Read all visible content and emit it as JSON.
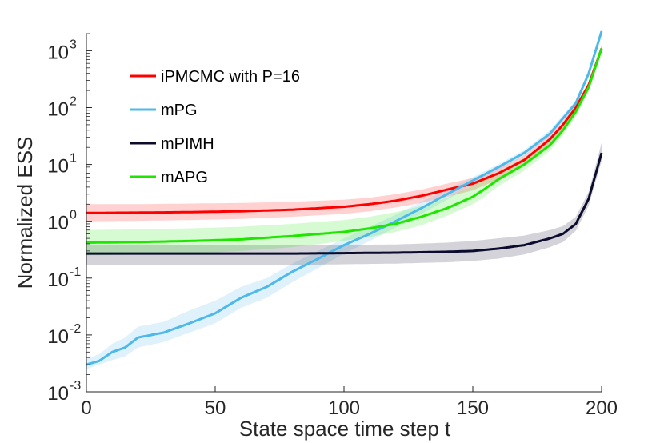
{
  "chart_data": {
    "type": "line",
    "title": "",
    "xlabel": "State space time step t",
    "ylabel": "Normalized ESS",
    "xlim": [
      0,
      200
    ],
    "ylim": [
      0.001,
      2000
    ],
    "yscale": "log",
    "grid": false,
    "legend_position": "top-left",
    "x_ticks": [
      0,
      50,
      100,
      150,
      200
    ],
    "x_tick_labels": [
      "0",
      "50",
      "100",
      "150",
      "200"
    ],
    "y_ticks": [
      {
        "value": 0.001,
        "base": "10",
        "exp": "-3"
      },
      {
        "value": 0.01,
        "base": "10",
        "exp": "-2"
      },
      {
        "value": 0.1,
        "base": "10",
        "exp": "-1"
      },
      {
        "value": 1,
        "base": "10",
        "exp": "0"
      },
      {
        "value": 10,
        "base": "10",
        "exp": "1"
      },
      {
        "value": 100,
        "base": "10",
        "exp": "2"
      },
      {
        "value": 1000,
        "base": "10",
        "exp": "3"
      }
    ],
    "series": [
      {
        "name": "iPMCMC with P=16",
        "color": "#ff0000",
        "x": [
          0,
          20,
          40,
          60,
          80,
          100,
          110,
          120,
          130,
          140,
          150,
          160,
          170,
          180,
          185,
          190,
          195,
          200
        ],
        "y": [
          1.4,
          1.42,
          1.45,
          1.5,
          1.6,
          1.8,
          2.0,
          2.3,
          2.8,
          3.6,
          4.6,
          7,
          12,
          28,
          50,
          100,
          250,
          1100
        ],
        "lower": [
          1.0,
          1.02,
          1.05,
          1.1,
          1.2,
          1.35,
          1.5,
          1.75,
          2.1,
          2.7,
          3.5,
          5.5,
          9.5,
          23,
          42,
          85,
          210,
          950
        ],
        "upper": [
          2.0,
          2.0,
          2.05,
          2.1,
          2.2,
          2.4,
          2.6,
          3.0,
          3.6,
          4.6,
          5.8,
          8.5,
          14.5,
          33,
          58,
          115,
          290,
          1250
        ]
      },
      {
        "name": "mPG",
        "color": "#4db8ea",
        "x": [
          0,
          5,
          10,
          15,
          20,
          30,
          40,
          50,
          60,
          70,
          80,
          90,
          100,
          110,
          120,
          130,
          140,
          150,
          160,
          170,
          180,
          190,
          195,
          200
        ],
        "y": [
          0.003,
          0.0035,
          0.005,
          0.006,
          0.009,
          0.011,
          0.016,
          0.024,
          0.045,
          0.07,
          0.13,
          0.22,
          0.38,
          0.6,
          1.0,
          1.7,
          3.0,
          5.2,
          9,
          16,
          35,
          120,
          400,
          2200
        ],
        "lower": [
          0.0025,
          0.003,
          0.0036,
          0.0042,
          0.006,
          0.0075,
          0.011,
          0.016,
          0.03,
          0.045,
          0.085,
          0.15,
          0.27,
          0.45,
          0.78,
          1.35,
          2.4,
          4.4,
          7.8,
          14,
          31,
          108,
          360,
          2000
        ],
        "upper": [
          0.0038,
          0.0046,
          0.007,
          0.009,
          0.014,
          0.017,
          0.027,
          0.04,
          0.07,
          0.1,
          0.18,
          0.3,
          0.5,
          0.8,
          1.3,
          2.2,
          3.6,
          6.0,
          10.2,
          18,
          40,
          135,
          450,
          2450
        ]
      },
      {
        "name": "mPIMH",
        "color": "#0b0b2e",
        "x": [
          0,
          20,
          40,
          60,
          80,
          100,
          120,
          140,
          150,
          160,
          170,
          180,
          185,
          190,
          195,
          200
        ],
        "y": [
          0.27,
          0.27,
          0.27,
          0.27,
          0.27,
          0.275,
          0.28,
          0.29,
          0.3,
          0.33,
          0.38,
          0.5,
          0.6,
          0.9,
          2.5,
          16
        ],
        "lower": [
          0.17,
          0.17,
          0.17,
          0.17,
          0.17,
          0.175,
          0.18,
          0.19,
          0.2,
          0.22,
          0.26,
          0.35,
          0.43,
          0.68,
          1.9,
          11.5
        ],
        "upper": [
          0.38,
          0.38,
          0.38,
          0.38,
          0.38,
          0.385,
          0.39,
          0.42,
          0.45,
          0.5,
          0.56,
          0.7,
          0.82,
          1.2,
          3.3,
          24
        ]
      },
      {
        "name": "mAPG",
        "color": "#1ee600",
        "x": [
          0,
          20,
          40,
          60,
          80,
          100,
          110,
          120,
          130,
          140,
          150,
          155,
          160,
          170,
          180,
          185,
          190,
          195,
          200
        ],
        "y": [
          0.42,
          0.43,
          0.45,
          0.48,
          0.55,
          0.65,
          0.75,
          0.9,
          1.2,
          1.7,
          2.7,
          3.8,
          5.5,
          10,
          22,
          40,
          85,
          230,
          1100
        ],
        "lower": [
          0.25,
          0.26,
          0.27,
          0.3,
          0.35,
          0.45,
          0.53,
          0.65,
          0.85,
          1.25,
          2.0,
          2.8,
          4.2,
          7.8,
          17.5,
          33,
          70,
          195,
          950
        ],
        "upper": [
          0.7,
          0.72,
          0.75,
          0.8,
          0.9,
          1.05,
          1.2,
          1.45,
          1.85,
          2.6,
          4.2,
          6.0,
          7.5,
          13,
          27,
          48,
          100,
          270,
          1250
        ]
      }
    ]
  }
}
